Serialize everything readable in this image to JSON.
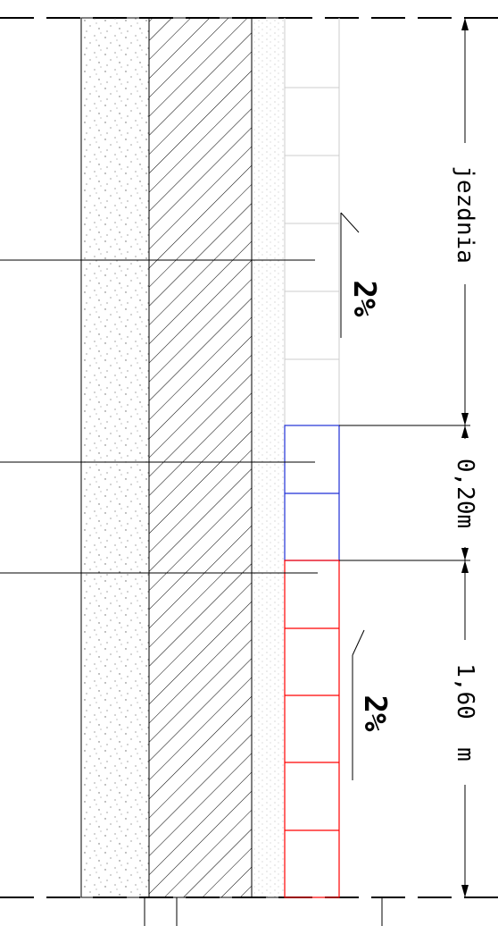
{
  "colors": {
    "lines": "#000000",
    "pavement_grid": "#cccccc",
    "separator_strip": "#1f2fd6",
    "sidewalk": "#ff0000",
    "sand_fill": "#777777"
  },
  "slopes": {
    "upper": "2%",
    "lower": "2%"
  },
  "dimensions": {
    "roadway": "jezdnia",
    "separator": "0,20m",
    "sidewalk": "1,60  m"
  }
}
